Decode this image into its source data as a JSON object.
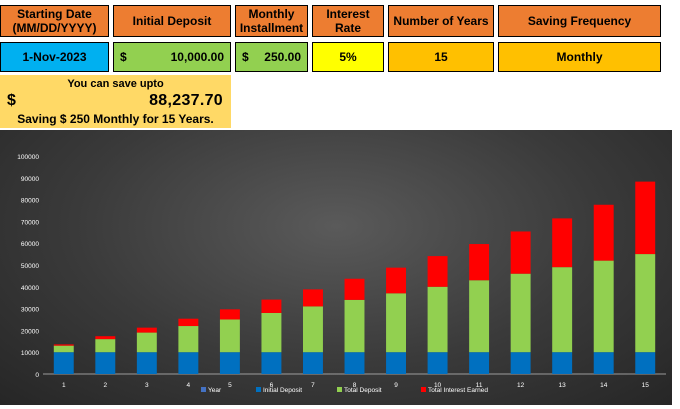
{
  "inputs": {
    "start_date": {
      "label_line1": "Starting Date",
      "label_line2": "(MM/DD/YYYY)",
      "value": "1-Nov-2023"
    },
    "initial_deposit": {
      "label": "Initial Deposit",
      "currency": "$",
      "value": "10,000.00"
    },
    "monthly_installment": {
      "label_line1": "Monthly",
      "label_line2": "Installment",
      "currency": "$",
      "value": "250.00"
    },
    "interest_rate": {
      "label": "Interest Rate",
      "value": "5%"
    },
    "number_of_years": {
      "label": "Number of Years",
      "value": "15"
    },
    "saving_frequency": {
      "label": "Saving Frequency",
      "value": "Monthly"
    }
  },
  "result": {
    "title": "You can save upto",
    "currency": "$",
    "amount": "88,237.70",
    "summary": "Saving  $ 250  Monthly for  15 Years."
  },
  "colors": {
    "header": "#ed7d31",
    "date_cell": "#00b0f0",
    "money_cell": "#92d050",
    "rate_cell": "#ffff00",
    "years_cell": "#ffc000",
    "result_bg": "#ffd966",
    "series_year": "#4472c4",
    "series_initial": "#0070c0",
    "series_total_deposit": "#92d050",
    "series_interest": "#ff0000"
  },
  "chart_data": {
    "type": "bar",
    "stacked": true,
    "categories": [
      "1",
      "2",
      "3",
      "4",
      "5",
      "6",
      "7",
      "8",
      "9",
      "10",
      "11",
      "12",
      "13",
      "14",
      "15"
    ],
    "series": [
      {
        "name": "Year",
        "values": [
          1,
          2,
          3,
          4,
          5,
          6,
          7,
          8,
          9,
          10,
          11,
          12,
          13,
          14,
          15
        ]
      },
      {
        "name": "Initial Deposit",
        "values": [
          10000,
          10000,
          10000,
          10000,
          10000,
          10000,
          10000,
          10000,
          10000,
          10000,
          10000,
          10000,
          10000,
          10000,
          10000
        ]
      },
      {
        "name": "Total Deposit",
        "values": [
          3000,
          6000,
          9000,
          12000,
          15000,
          18000,
          21000,
          24000,
          27000,
          30000,
          33000,
          36000,
          39000,
          42000,
          45000
        ]
      },
      {
        "name": "Total Interest Earned",
        "values": [
          583,
          1336,
          2261,
          3365,
          4653,
          6132,
          7808,
          9686,
          11773,
          14077,
          16606,
          19368,
          22371,
          25623,
          33238
        ]
      }
    ],
    "yticks": [
      "0",
      "10000",
      "20000",
      "30000",
      "40000",
      "50000",
      "60000",
      "70000",
      "80000",
      "90000",
      "100000"
    ],
    "ylim": [
      0,
      100000
    ],
    "grid": false,
    "legend": "bottom"
  }
}
